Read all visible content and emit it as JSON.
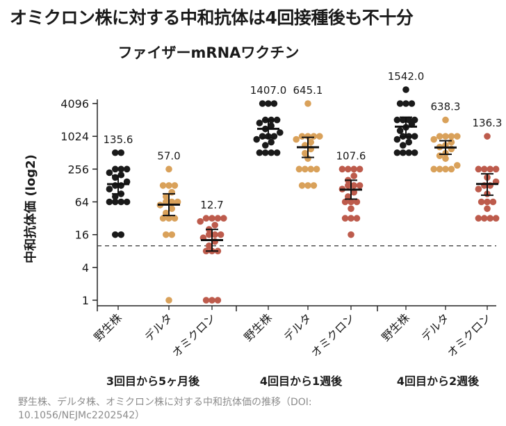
{
  "headline": "オミクロン株に対する中和抗体は4回接種後も不十分",
  "caption": "野生株、デルタ株、オミクロン株に対する中和抗体価の推移（DOI: 10.1056/NEJMc2202542）",
  "colors": {
    "wild": "#1a1a1a",
    "delta": "#d9a15a",
    "omicron": "#bd5b4c",
    "axis": "#222222",
    "mean_bar": "#111111"
  },
  "chart_data": {
    "type": "scatter",
    "title": "ファイザーmRNAワクチン",
    "ylabel": "中和抗体価 (log2)",
    "yscale": "log2",
    "ylim": [
      0.85,
      6500
    ],
    "yticks": [
      1,
      4,
      16,
      64,
      256,
      1024,
      4096
    ],
    "ytick_labels": [
      "1",
      "4",
      "16",
      "64",
      "256",
      "1024",
      "4096"
    ],
    "threshold": 10,
    "threshold_style": "dashed",
    "groups": [
      {
        "label": "3回目から5ヶ月後",
        "columns": [
          {
            "name": "野生株",
            "color_key": "wild",
            "mean": 135.6,
            "mean_label": "135.6",
            "ci": [
              90,
              195
            ],
            "points": [
              16,
              16,
              64,
              64,
              64,
              64,
              80,
              90,
              110,
              128,
              128,
              150,
              180,
              200,
              220,
              256,
              256,
              256,
              512,
              512
            ]
          },
          {
            "name": "デルタ",
            "color_key": "delta",
            "mean": 57.0,
            "mean_label": "57.0",
            "ci": [
              36,
              90
            ],
            "points": [
              1,
              16,
              16,
              32,
              32,
              32,
              40,
              48,
              56,
              64,
              64,
              64,
              80,
              96,
              128,
              128,
              128,
              256
            ]
          },
          {
            "name": "オミクロン",
            "color_key": "omicron",
            "mean": 12.7,
            "mean_label": "12.7",
            "ci": [
              8,
              20
            ],
            "points": [
              1,
              1,
              1,
              8,
              8,
              8,
              10,
              12,
              14,
              16,
              16,
              16,
              20,
              24,
              28,
              32,
              32,
              32,
              32
            ]
          }
        ]
      },
      {
        "label": "4回目から1週後",
        "columns": [
          {
            "name": "野生株",
            "color_key": "wild",
            "mean": 1407.0,
            "mean_label": "1407.0",
            "ci": [
              950,
              2050
            ],
            "points": [
              512,
              512,
              512,
              512,
              700,
              800,
              900,
              1024,
              1024,
              1024,
              1200,
              1400,
              1600,
              1800,
              2048,
              2048,
              2048,
              4096,
              4096,
              4096
            ]
          },
          {
            "name": "デルタ",
            "color_key": "delta",
            "mean": 645.1,
            "mean_label": "645.1",
            "ci": [
              420,
              980
            ],
            "points": [
              128,
              128,
              128,
              256,
              256,
              256,
              256,
              400,
              500,
              600,
              700,
              800,
              900,
              1024,
              1024,
              1024,
              1024,
              4096
            ]
          },
          {
            "name": "オミクロン",
            "color_key": "omicron",
            "mean": 107.6,
            "mean_label": "107.6",
            "ci": [
              72,
              160
            ],
            "points": [
              16,
              32,
              32,
              32,
              48,
              64,
              64,
              64,
              80,
              96,
              110,
              128,
              128,
              128,
              160,
              192,
              256,
              256,
              256,
              256
            ]
          }
        ]
      },
      {
        "label": "4回目から2週後",
        "columns": [
          {
            "name": "野生株",
            "color_key": "wild",
            "mean": 1542.0,
            "mean_label": "1542.0",
            "ci": [
              1000,
              2300
            ],
            "points": [
              512,
              512,
              512,
              512,
              700,
              800,
              900,
              1024,
              1024,
              1024,
              1300,
              1500,
              1700,
              2048,
              2048,
              2048,
              2048,
              4096,
              4096,
              4096,
              8192
            ]
          },
          {
            "name": "デルタ",
            "color_key": "delta",
            "mean": 638.3,
            "mean_label": "638.3",
            "ci": [
              480,
              850
            ],
            "points": [
              256,
              256,
              256,
              256,
              300,
              400,
              450,
              500,
              600,
              650,
              700,
              800,
              900,
              1024,
              1024,
              1024,
              1024,
              2048
            ]
          },
          {
            "name": "オミクロン",
            "color_key": "omicron",
            "mean": 136.3,
            "mean_label": "136.3",
            "ci": [
              85,
              210
            ],
            "points": [
              32,
              32,
              32,
              32,
              48,
              64,
              64,
              64,
              90,
              110,
              128,
              128,
              150,
              180,
              256,
              256,
              256,
              256,
              1024
            ]
          }
        ]
      }
    ]
  }
}
